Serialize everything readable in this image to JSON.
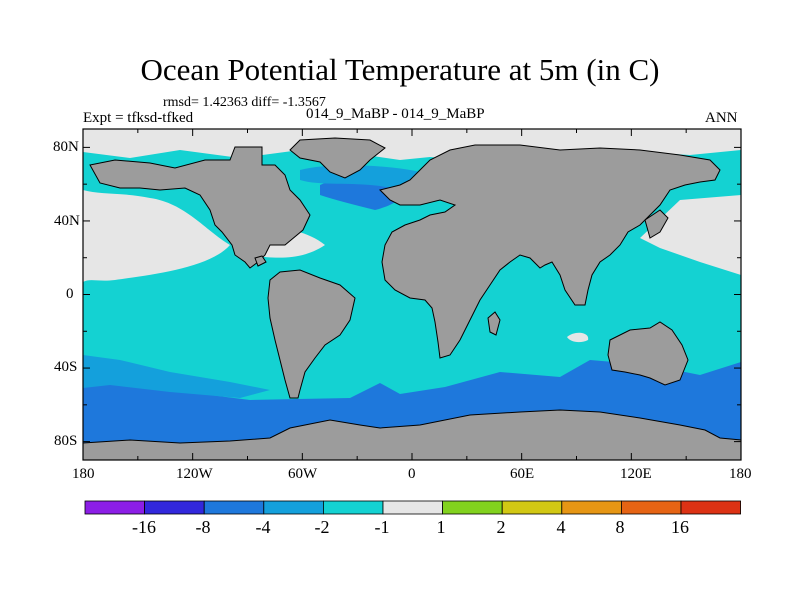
{
  "title": "Ocean Potential Temperature at 5m (in C)",
  "stats": "rmsd= 1.42363 diff= -1.3567",
  "left_label": "Expt = tfksd-tfked",
  "center_label": "014_9_MaBP - 014_9_MaBP",
  "right_label": "ANN",
  "map": {
    "lat_ticks": [
      "80N",
      "40N",
      "0",
      "40S",
      "80S"
    ],
    "lon_ticks": [
      "180",
      "120W",
      "60W",
      "0",
      "60E",
      "120E",
      "180"
    ],
    "colors": {
      "land": "#9c9c9c",
      "near_zero": "#e6e6e6",
      "neg1_to_neg2": "#14d2d2",
      "neg2_to_neg4": "#14a0dc",
      "neg4_to_neg8": "#1e78dc"
    }
  },
  "colorbar": {
    "labels": [
      "-16",
      "-8",
      "-4",
      "-2",
      "-1",
      "1",
      "2",
      "4",
      "8",
      "16"
    ],
    "colors": [
      "#8c1ee6",
      "#3228dc",
      "#1e78dc",
      "#14a0dc",
      "#14d2d2",
      "#e6e6e6",
      "#82d21e",
      "#d2c814",
      "#e69614",
      "#e66414",
      "#dc3214"
    ]
  }
}
